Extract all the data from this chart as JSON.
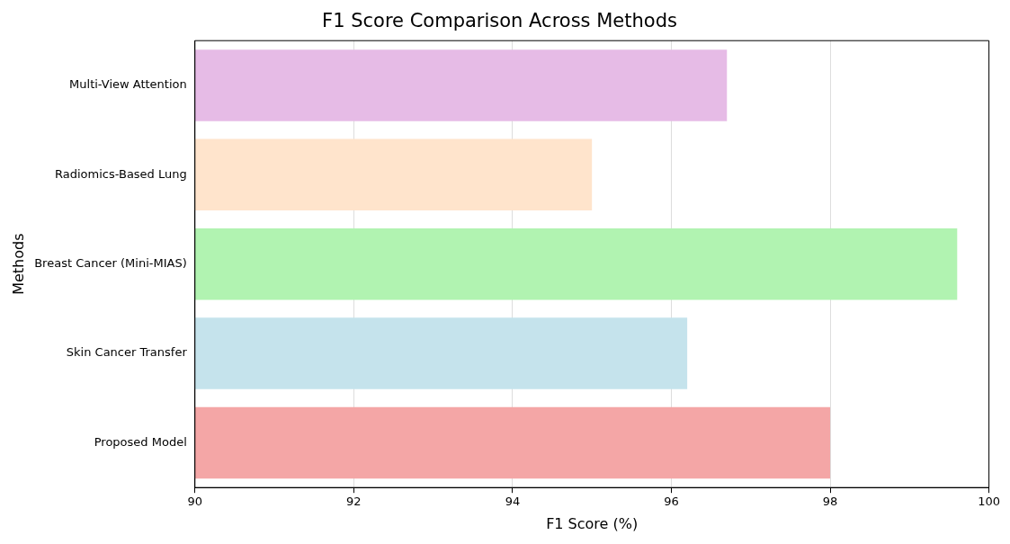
{
  "chart_data": {
    "type": "bar",
    "orientation": "horizontal",
    "title": "F1 Score Comparison Across Methods",
    "xlabel": "F1 Score (%)",
    "ylabel": "Methods",
    "categories": [
      "Multi-View Attention",
      "Radiomics-Based Lung",
      "Breast Cancer (Mini-MIAS)",
      "Skin Cancer Transfer",
      "Proposed Model"
    ],
    "values": [
      96.7,
      95.0,
      99.6,
      96.2,
      98.0
    ],
    "colors": [
      "#e6bbe6",
      "#ffe4cc",
      "#b1f3b1",
      "#c5e3ec",
      "#f4a6a6"
    ],
    "xlim": [
      90,
      100
    ],
    "xticks": [
      90,
      92,
      94,
      96,
      98,
      100
    ],
    "grid": "x"
  }
}
